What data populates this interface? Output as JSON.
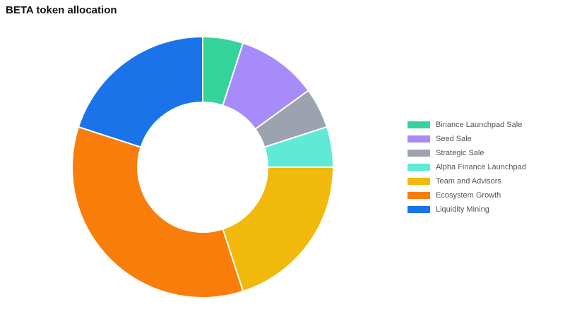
{
  "chart_data": {
    "type": "donut",
    "title": "BETA token allocation",
    "categories": [
      "Binance Launchpad Sale",
      "Seed Sale",
      "Strategic Sale",
      "Alpha Finance Launchpad",
      "Team and Advisors",
      "Ecosystem Growth",
      "Liquidity Mining"
    ],
    "values": [
      5,
      10,
      5,
      5,
      20,
      35,
      20
    ],
    "colors": [
      "#34d399",
      "#a78bfa",
      "#9ca3af",
      "#5eead4",
      "#f0b90b",
      "#f97d0a",
      "#1a73e8"
    ],
    "legend": "right"
  }
}
